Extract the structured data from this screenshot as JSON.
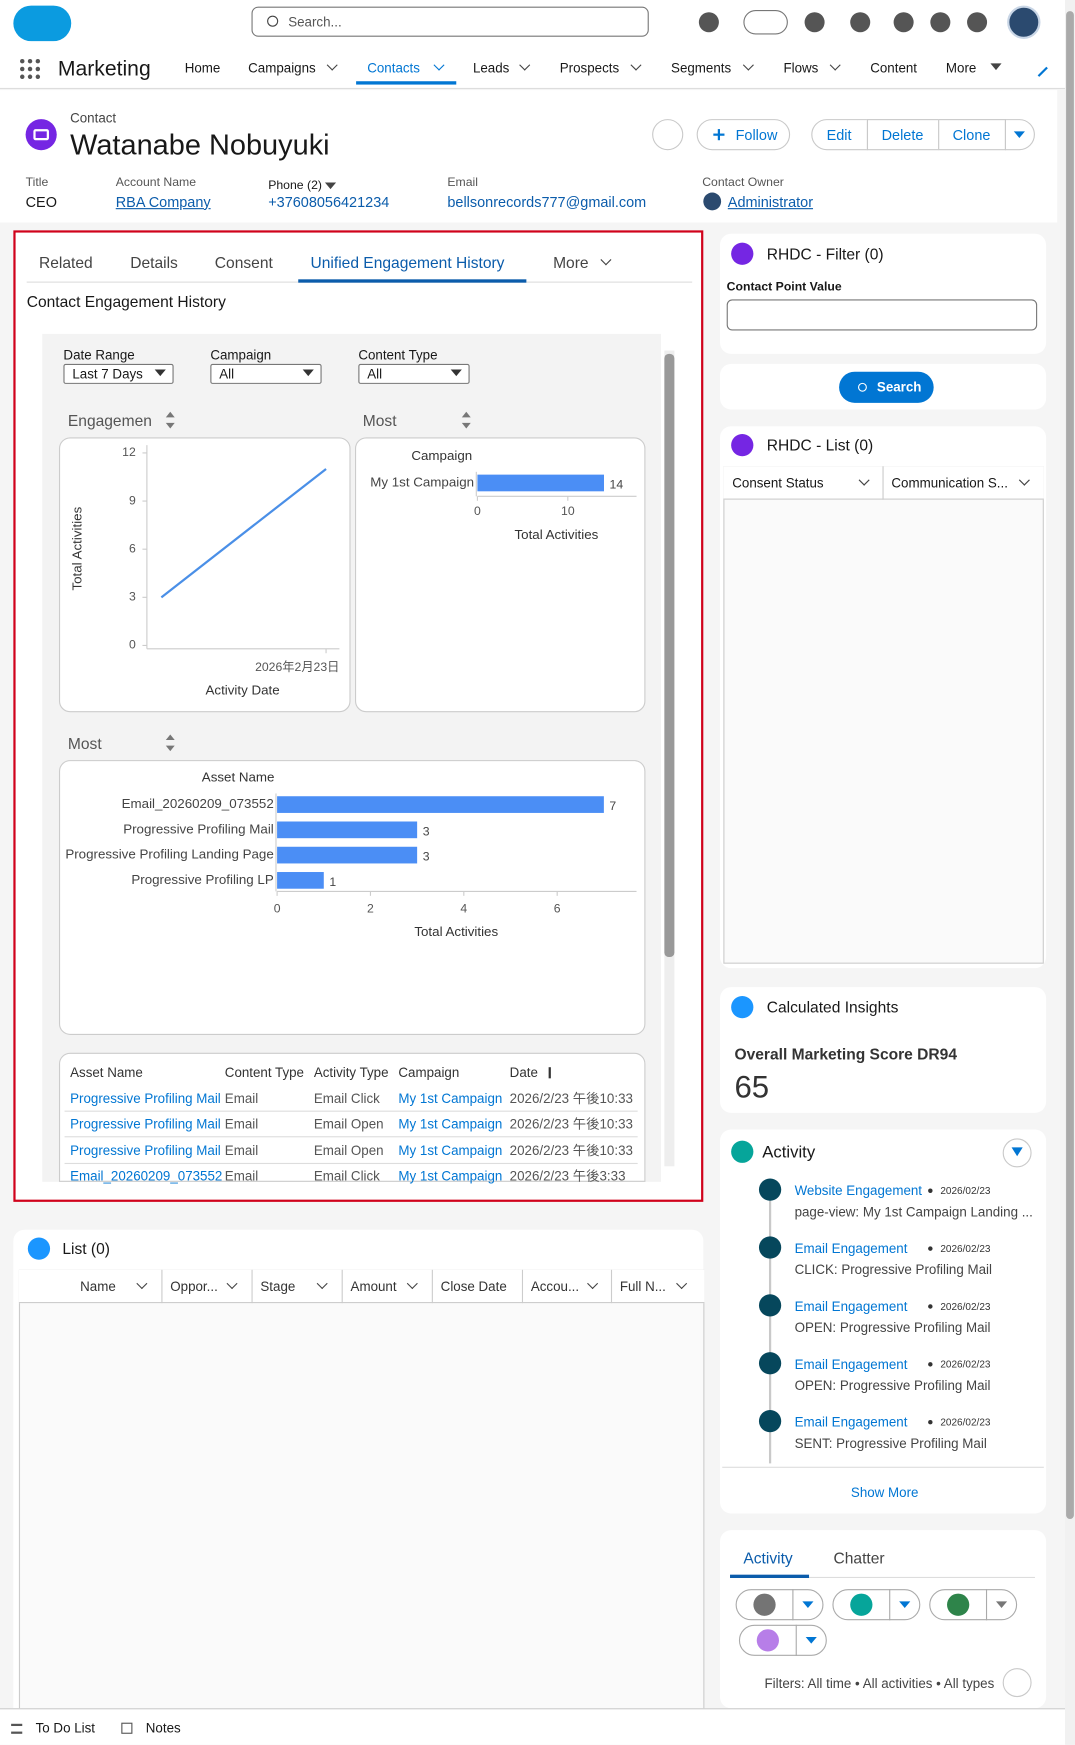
{
  "app": {
    "name": "Marketing",
    "search_placeholder": "Search...",
    "nav": [
      "Home",
      "Campaigns",
      "Contacts",
      "Leads",
      "Prospects",
      "Segments",
      "Flows",
      "Content",
      "More"
    ]
  },
  "record": {
    "object": "Contact",
    "name": "Watanabe Nobuyuki",
    "actions": [
      "Follow",
      "Edit",
      "Delete",
      "Clone"
    ],
    "fields": [
      {
        "label": "Title",
        "value": "CEO"
      },
      {
        "label": "Account Name",
        "value": "RBA Company"
      },
      {
        "label": "Phone (2)",
        "value": "+37608056421234"
      },
      {
        "label": "Email",
        "value": "bellsonrecords777@gmail.com"
      },
      {
        "label": "Contact Owner",
        "value": "Administrator"
      }
    ]
  },
  "tabs": [
    "Related",
    "Details",
    "Consent",
    "Unified Engagement History",
    "More"
  ],
  "engagement": {
    "title": "Contact Engagement History",
    "filters": [
      {
        "label": "Date Range",
        "value": "Last 7 Days"
      },
      {
        "label": "Campaign",
        "value": "All"
      },
      {
        "label": "Content Type",
        "value": "All"
      }
    ],
    "chart_headers": [
      "Engagemen",
      "Most",
      "Most"
    ],
    "table": {
      "columns": [
        "Asset Name",
        "Content Type",
        "Activity Type",
        "Campaign",
        "Date"
      ],
      "rows": [
        [
          "Progressive Profiling Mail",
          "Email",
          "Email Click",
          "My 1st Campaign",
          "2026/2/23 午後10:33"
        ],
        [
          "Progressive Profiling Mail",
          "Email",
          "Email Open",
          "My 1st Campaign",
          "2026/2/23 午後10:33"
        ],
        [
          "Progressive Profiling Mail",
          "Email",
          "Email Open",
          "My 1st Campaign",
          "2026/2/23 午後10:33"
        ],
        [
          "Email_20260209_073552",
          "Email",
          "Email Click",
          "My 1st Campaign",
          "2026/2/23 午後3:33"
        ]
      ]
    }
  },
  "chart_data": [
    {
      "type": "line",
      "x_label": "Activity Date",
      "y_label": "Total Activities",
      "categories": [
        null,
        "2026年2月23日"
      ],
      "values": [
        3,
        11
      ],
      "color": "#4a8fe7",
      "ylim": [
        0,
        12
      ],
      "yticks": [
        0,
        3,
        6,
        9,
        12
      ]
    },
    {
      "type": "bar",
      "orientation": "horizontal",
      "y_label": "Campaign",
      "x_label": "Total Activities",
      "categories": [
        "My 1st Campaign"
      ],
      "values": [
        14
      ],
      "color": "#4b8ef5",
      "xlim": [
        0,
        17.6
      ],
      "xticks": [
        0,
        10
      ]
    },
    {
      "type": "bar",
      "orientation": "horizontal",
      "y_label": "Asset Name",
      "x_label": "Total Activities",
      "categories": [
        "Email_20260209_073552",
        "Progressive Profiling Mail",
        "Progressive Profiling Landing Page",
        "Progressive Profiling LP"
      ],
      "values": [
        7,
        3,
        3,
        1
      ],
      "color": "#4b8ef5",
      "xlim": [
        0,
        7.7
      ],
      "xticks": [
        0,
        2,
        4,
        6
      ]
    }
  ],
  "side": {
    "filter": {
      "title": "RHDC - Filter (0)",
      "field": "Contact Point Value",
      "button": "Search"
    },
    "list": {
      "title": "RHDC - List (0)",
      "columns": [
        "Consent Status",
        "Communication S..."
      ]
    },
    "insights": {
      "title": "Calculated Insights",
      "metric": "Overall Marketing Score DR94",
      "value": "65"
    },
    "activity": {
      "title": "Activity",
      "more": "Show More",
      "items": [
        {
          "type": "Website Engagement",
          "date": "2026/02/23",
          "desc": "page-view: My 1st Campaign Landing ..."
        },
        {
          "type": "Email Engagement",
          "date": "2026/02/23",
          "desc": "CLICK: Progressive Profiling Mail"
        },
        {
          "type": "Email Engagement",
          "date": "2026/02/23",
          "desc": "OPEN: Progressive Profiling Mail"
        },
        {
          "type": "Email Engagement",
          "date": "2026/02/23",
          "desc": "OPEN: Progressive Profiling Mail"
        },
        {
          "type": "Email Engagement",
          "date": "2026/02/23",
          "desc": "SENT: Progressive Profiling Mail"
        }
      ]
    },
    "feed": {
      "tabs": [
        "Activity",
        "Chatter"
      ],
      "filters": "Filters: All time • All activities • All types"
    }
  },
  "list": {
    "title": "List (0)",
    "columns": [
      "Name",
      "Oppor...",
      "Stage",
      "Amount",
      "Close Date",
      "Accou...",
      "Full N..."
    ]
  },
  "footer": [
    "To Do List",
    "Notes"
  ]
}
